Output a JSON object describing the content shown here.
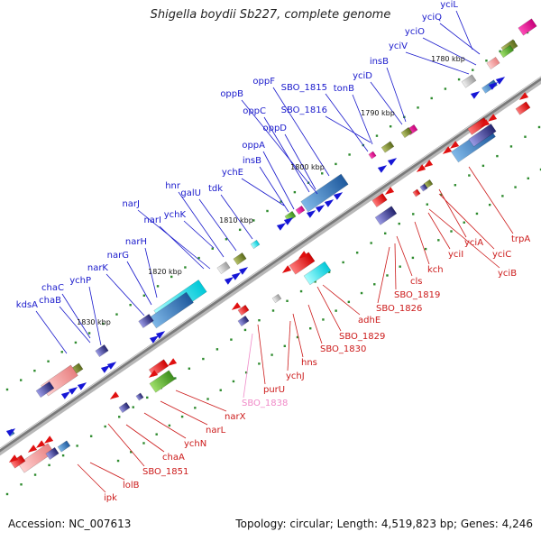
{
  "header": {
    "title": "Shigella boydii Sb227, complete genome"
  },
  "footer": {
    "accession": "Accession: NC_007613",
    "summary": "Topology: circular; Length: 4,519,823 bp; Genes: 4,246"
  },
  "colors": {
    "backbone": "#7a7a7a",
    "forward_label": "#1a1acc",
    "reverse_label": "#cc1a1a",
    "highlight_label": "#f08ac8",
    "tick": "#2e8b2e"
  },
  "ticks": [
    {
      "label": "1780 kbp"
    },
    {
      "label": "1790 kbp"
    },
    {
      "label": "1800 kbp"
    },
    {
      "label": "1810 kbp"
    },
    {
      "label": "1820 kbp"
    },
    {
      "label": "1830 kbp"
    }
  ],
  "forward_genes": [
    {
      "label": "yciL"
    },
    {
      "label": "yciQ"
    },
    {
      "label": "yciO"
    },
    {
      "label": "yciV"
    },
    {
      "label": "insB"
    },
    {
      "label": "yciD"
    },
    {
      "label": "tonB"
    },
    {
      "label": "SBO_1815"
    },
    {
      "label": "SBO_1816"
    },
    {
      "label": "oppF"
    },
    {
      "label": "oppB"
    },
    {
      "label": "oppC"
    },
    {
      "label": "oppD"
    },
    {
      "label": "oppA"
    },
    {
      "label": "insB"
    },
    {
      "label": "ychE"
    },
    {
      "label": "tdk"
    },
    {
      "label": "galU"
    },
    {
      "label": "hnr"
    },
    {
      "label": "ychK"
    },
    {
      "label": "narJ"
    },
    {
      "label": "narI"
    },
    {
      "label": "narH"
    },
    {
      "label": "narG"
    },
    {
      "label": "narK"
    },
    {
      "label": "ychP"
    },
    {
      "label": "chaC"
    },
    {
      "label": "chaB"
    },
    {
      "label": "kdsA"
    }
  ],
  "reverse_genes": [
    {
      "label": "trpA"
    },
    {
      "label": "yciA"
    },
    {
      "label": "yciC"
    },
    {
      "label": "yciB"
    },
    {
      "label": "yciI"
    },
    {
      "label": "kch"
    },
    {
      "label": "cls"
    },
    {
      "label": "SBO_1819"
    },
    {
      "label": "SBO_1826"
    },
    {
      "label": "adhE"
    },
    {
      "label": "SBO_1829"
    },
    {
      "label": "SBO_1830"
    },
    {
      "label": "hns"
    },
    {
      "label": "ychJ"
    },
    {
      "label": "purU"
    },
    {
      "label": "SBO_1838"
    },
    {
      "label": "narX"
    },
    {
      "label": "narL"
    },
    {
      "label": "ychN"
    },
    {
      "label": "chaA"
    },
    {
      "label": "SBO_1851"
    },
    {
      "label": "lolB"
    },
    {
      "label": "ipk"
    }
  ]
}
